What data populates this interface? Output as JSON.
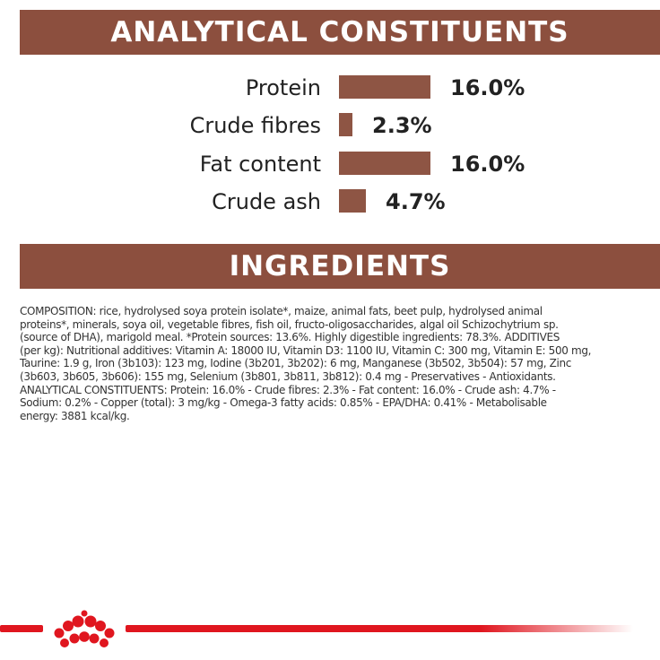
{
  "colors": {
    "banner": "#8c4f3e",
    "bar": "#8e5544",
    "footer_red": "#e0161f",
    "text": "#222222",
    "background": "#ffffff"
  },
  "analytical": {
    "title": "ANALYTICAL CONSTITUENTS",
    "rows": [
      {
        "label": "Protein",
        "value": "16.0%",
        "percent": 16.0
      },
      {
        "label": "Crude fibres",
        "value": "2.3%",
        "percent": 2.3
      },
      {
        "label": "Fat content",
        "value": "16.0%",
        "percent": 16.0
      },
      {
        "label": "Crude ash",
        "value": "4.7%",
        "percent": 4.7
      }
    ]
  },
  "ingredients": {
    "title": "INGREDIENTS",
    "lines": [
      "COMPOSITION: rice, hydrolysed soya protein isolate*, maize, animal fats, beet pulp, hydrolysed animal",
      "proteins*, minerals, soya oil, vegetable fibres, fish oil, fructo-oligosaccharides, algal oil Schizochytrium sp.",
      "(source of DHA), marigold meal. *Protein sources: 13.6%. Highly digestible ingredients: 78.3%. ADDITIVES",
      "(per kg): Nutritional additives: Vitamin A: 18000 IU, Vitamin D3: 1100 IU, Vitamin C: 300 mg, Vitamin E: 500 mg,",
      "Taurine: 1.9 g, Iron (3b103): 123 mg, Iodine (3b201, 3b202): 6 mg, Manganese (3b502, 3b504): 57 mg, Zinc",
      "(3b603, 3b605, 3b606): 155 mg, Selenium (3b801, 3b811, 3b812): 0.4 mg - Preservatives - Antioxidants.",
      "ANALYTICAL CONSTITUENTS: Protein: 16.0% - Crude fibres: 2.3% - Fat content: 16.0% - Crude ash: 4.7% -",
      "Sodium: 0.2% - Copper (total): 3 mg/kg - Omega-3 fatty acids: 0.85% - EPA/DHA: 0.41% - Metabolisable",
      "energy: 3881 kcal/kg."
    ]
  },
  "footer": {
    "logo_icon": "crown-icon"
  }
}
